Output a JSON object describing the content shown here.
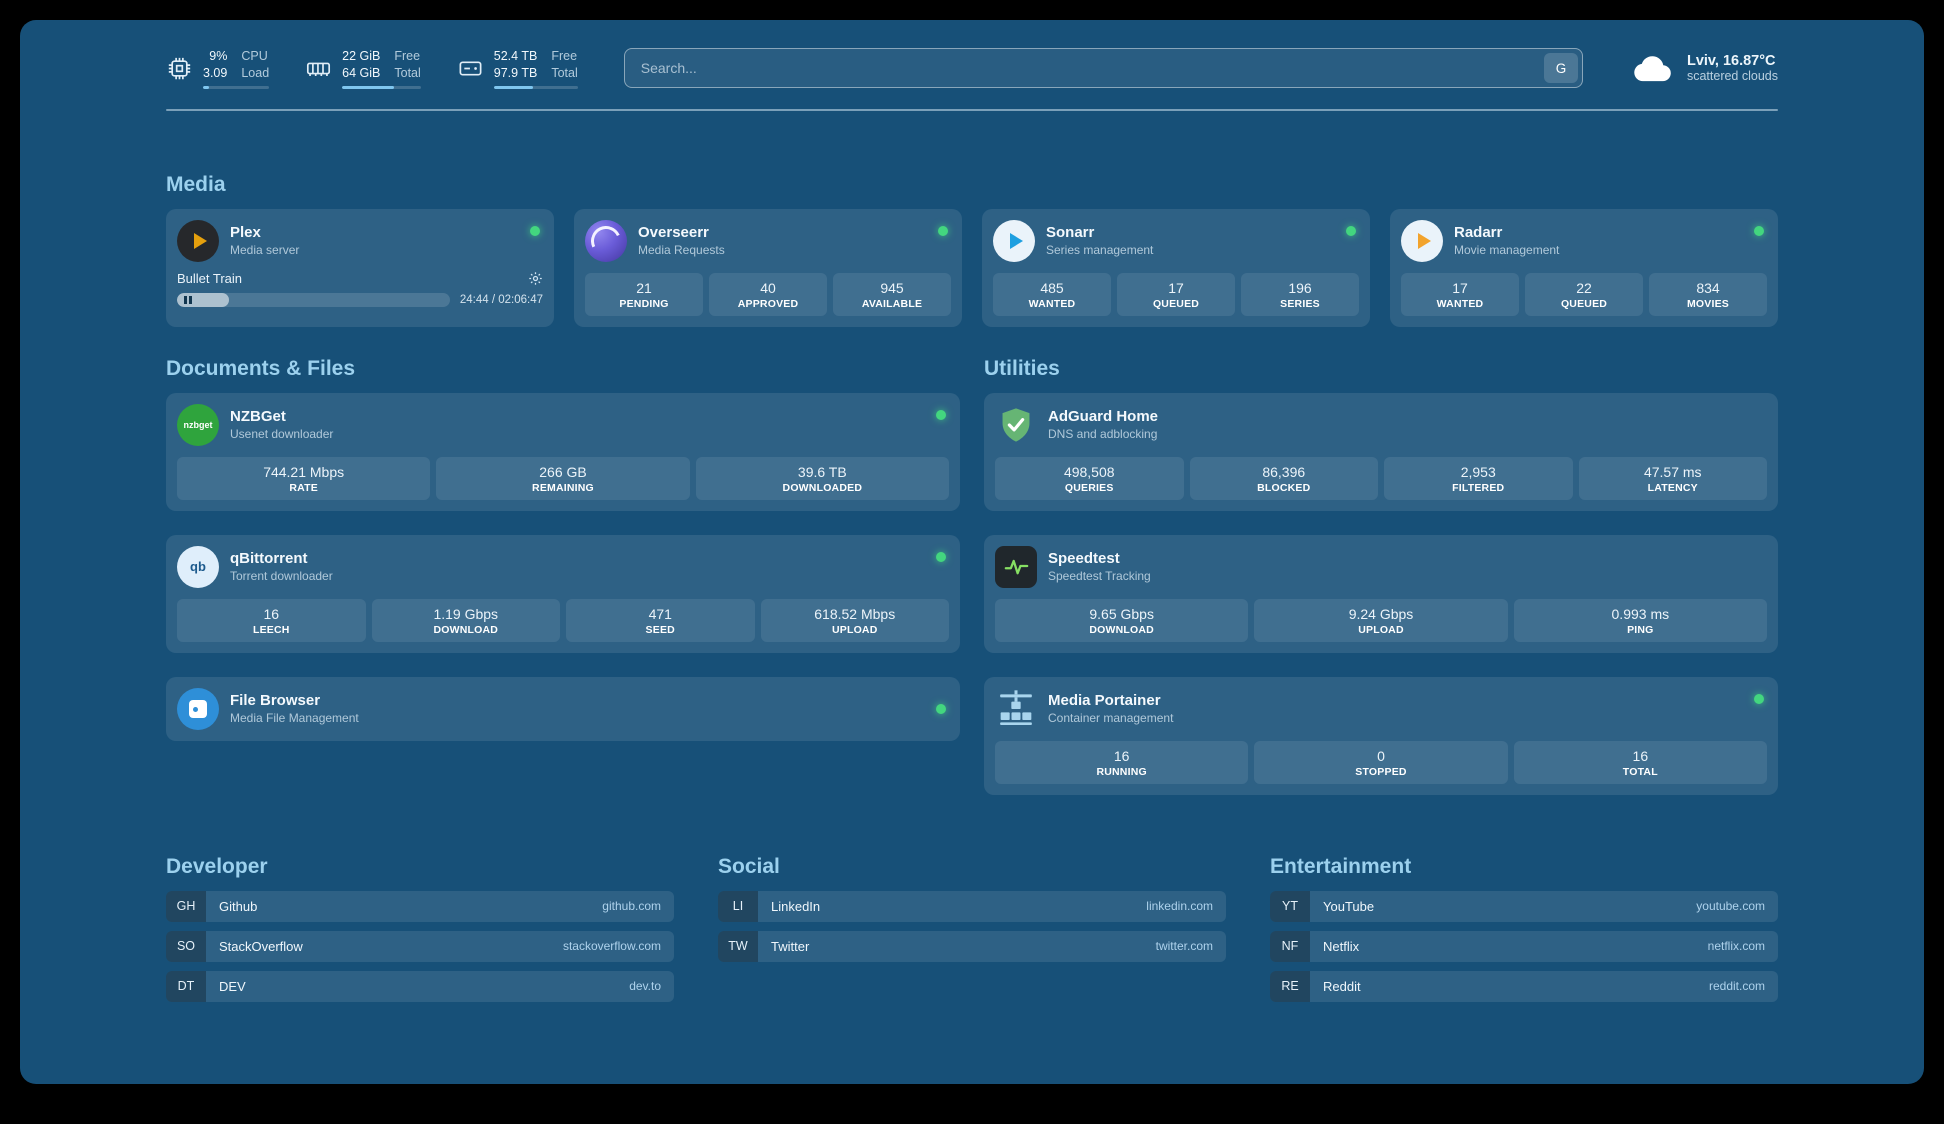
{
  "colors": {
    "background": "#175078",
    "card": "rgba(255,255,255,0.10)",
    "heading": "#9cd1ee",
    "status_online": "#43d67f",
    "plex_accent": "#e5a00d",
    "progress_fill": "#7fc6ef"
  },
  "topbar": {
    "cpu": {
      "icon": "cpu-chip-icon",
      "value1": "9%",
      "label1": "CPU",
      "value2": "3.09",
      "label2": "Load",
      "progress_percent": 9
    },
    "memory": {
      "icon": "memory-icon",
      "value1": "22 GiB",
      "label1": "Free",
      "value2": "64 GiB",
      "label2": "Total",
      "progress_percent": 66
    },
    "disk": {
      "icon": "disk-icon",
      "value1": "52.4 TB",
      "label1": "Free",
      "value2": "97.9 TB",
      "label2": "Total",
      "progress_percent": 47
    },
    "search": {
      "placeholder": "Search...",
      "engine_button": "G"
    },
    "weather": {
      "icon": "cloud-icon",
      "location": "Lviv, 16.87°C",
      "condition": "scattered clouds"
    }
  },
  "media": {
    "heading": "Media",
    "plex": {
      "icon": "plex-icon",
      "name": "Plex",
      "subtitle": "Media server",
      "status": "online",
      "now_playing": {
        "title": "Bullet Train",
        "time": "24:44 / 02:06:47",
        "progress_percent": 19
      }
    },
    "overseerr": {
      "icon": "overseerr-icon",
      "name": "Overseerr",
      "subtitle": "Media Requests",
      "status": "online",
      "stats": [
        {
          "value": "21",
          "label": "PENDING"
        },
        {
          "value": "40",
          "label": "APPROVED"
        },
        {
          "value": "945",
          "label": "AVAILABLE"
        }
      ]
    },
    "sonarr": {
      "icon": "sonarr-icon",
      "name": "Sonarr",
      "subtitle": "Series management",
      "status": "online",
      "stats": [
        {
          "value": "485",
          "label": "WANTED"
        },
        {
          "value": "17",
          "label": "QUEUED"
        },
        {
          "value": "196",
          "label": "SERIES"
        }
      ]
    },
    "radarr": {
      "icon": "radarr-icon",
      "name": "Radarr",
      "subtitle": "Movie management",
      "status": "online",
      "stats": [
        {
          "value": "17",
          "label": "WANTED"
        },
        {
          "value": "22",
          "label": "QUEUED"
        },
        {
          "value": "834",
          "label": "MOVIES"
        }
      ]
    }
  },
  "documents": {
    "heading": "Documents & Files",
    "nzbget": {
      "icon": "nzbget-icon",
      "icon_text": "nzbget",
      "name": "NZBGet",
      "subtitle": "Usenet downloader",
      "status": "online",
      "stats": [
        {
          "value": "744.21 Mbps",
          "label": "RATE"
        },
        {
          "value": "266 GB",
          "label": "REMAINING"
        },
        {
          "value": "39.6 TB",
          "label": "DOWNLOADED"
        }
      ]
    },
    "qbittorrent": {
      "icon": "qbittorrent-icon",
      "icon_text": "qb",
      "name": "qBittorrent",
      "subtitle": "Torrent downloader",
      "status": "online",
      "stats": [
        {
          "value": "16",
          "label": "LEECH"
        },
        {
          "value": "1.19 Gbps",
          "label": "DOWNLOAD"
        },
        {
          "value": "471",
          "label": "SEED"
        },
        {
          "value": "618.52 Mbps",
          "label": "UPLOAD"
        }
      ]
    },
    "filebrowser": {
      "icon": "filebrowser-icon",
      "name": "File Browser",
      "subtitle": "Media File Management",
      "status": "online"
    }
  },
  "utilities": {
    "heading": "Utilities",
    "adguard": {
      "icon": "adguard-shield-icon",
      "name": "AdGuard Home",
      "subtitle": "DNS and adblocking",
      "status": "online",
      "stats": [
        {
          "value": "498,508",
          "label": "QUERIES"
        },
        {
          "value": "86,396",
          "label": "BLOCKED"
        },
        {
          "value": "2,953",
          "label": "FILTERED"
        },
        {
          "value": "47.57 ms",
          "label": "LATENCY"
        }
      ]
    },
    "speedtest": {
      "icon": "speedtest-icon",
      "name": "Speedtest",
      "subtitle": "Speedtest Tracking",
      "status": "online",
      "stats": [
        {
          "value": "9.65 Gbps",
          "label": "DOWNLOAD"
        },
        {
          "value": "9.24 Gbps",
          "label": "UPLOAD"
        },
        {
          "value": "0.993 ms",
          "label": "PING"
        }
      ]
    },
    "portainer": {
      "icon": "portainer-crane-icon",
      "name": "Media Portainer",
      "subtitle": "Container management",
      "status": "online",
      "stats": [
        {
          "value": "16",
          "label": "RUNNING"
        },
        {
          "value": "0",
          "label": "STOPPED"
        },
        {
          "value": "16",
          "label": "TOTAL"
        }
      ]
    }
  },
  "bookmarks": {
    "developer": {
      "heading": "Developer",
      "items": [
        {
          "abbr": "GH",
          "name": "Github",
          "url": "github.com"
        },
        {
          "abbr": "SO",
          "name": "StackOverflow",
          "url": "stackoverflow.com"
        },
        {
          "abbr": "DT",
          "name": "DEV",
          "url": "dev.to"
        }
      ]
    },
    "social": {
      "heading": "Social",
      "items": [
        {
          "abbr": "LI",
          "name": "LinkedIn",
          "url": "linkedin.com"
        },
        {
          "abbr": "TW",
          "name": "Twitter",
          "url": "twitter.com"
        }
      ]
    },
    "entertainment": {
      "heading": "Entertainment",
      "items": [
        {
          "abbr": "YT",
          "name": "YouTube",
          "url": "youtube.com"
        },
        {
          "abbr": "NF",
          "name": "Netflix",
          "url": "netflix.com"
        },
        {
          "abbr": "RE",
          "name": "Reddit",
          "url": "reddit.com"
        }
      ]
    }
  }
}
